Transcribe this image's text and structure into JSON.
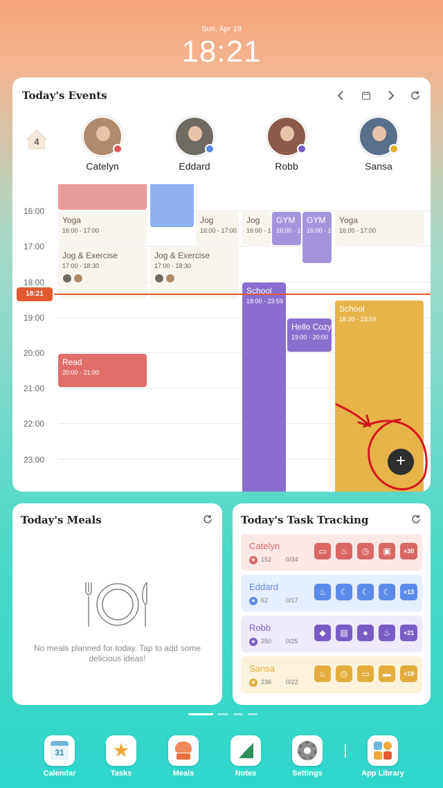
{
  "lockscreen": {
    "date": "Sun, Apr 19",
    "time": "18:21"
  },
  "events_card": {
    "title": "Today's Events",
    "household_count": "4",
    "people": [
      {
        "name": "Catelyn",
        "color": "#e05a55"
      },
      {
        "name": "Eddard",
        "color": "#5b8ae8"
      },
      {
        "name": "Robb",
        "color": "#7a5cc6"
      },
      {
        "name": "Sansa",
        "color": "#e6ae30"
      }
    ],
    "hours": [
      "16:00",
      "17:00",
      "18:00",
      "19:00",
      "20:00",
      "21:00",
      "22:00",
      "23:00"
    ],
    "now_label": "18:21",
    "events": {
      "catelyn_yoga": {
        "title": "Yoga",
        "time": "16:00 - 17:00"
      },
      "catelyn_jog": {
        "title": "Jog & Exercise",
        "time": "17:00 - 18:30"
      },
      "catelyn_read": {
        "title": "Read",
        "time": "20:00 - 21:00"
      },
      "eddard_jog": {
        "title": "Jog",
        "time": "16:00 - 17:00"
      },
      "eddard_jog_ex": {
        "title": "Jog & Exercise",
        "time": "17:00 - 18:30"
      },
      "robb_jog": {
        "title": "Jog",
        "time": "16:00 - 1"
      },
      "robb_gym1": {
        "title": "GYM",
        "time": "16:00 - 1"
      },
      "robb_gym2": {
        "title": "GYM",
        "time": "16:00 - 1"
      },
      "robb_school": {
        "title": "School",
        "time": "18:00 - 23:59"
      },
      "robb_hello": {
        "title": "Hello Cozy",
        "time": "19:00 - 20:00"
      },
      "sansa_yoga": {
        "title": "Yoga",
        "time": "16:00 - 17:00"
      },
      "sansa_school": {
        "title": "School",
        "time": "18:30 - 23:59"
      }
    },
    "add_button": "+"
  },
  "meals_card": {
    "title": "Today's Meals",
    "empty_text": "No meals planned for today. Tap to add some delicious ideas!"
  },
  "tasks_card": {
    "title": "Today's Task Tracking",
    "rows": [
      {
        "name": "Catelyn",
        "points": "152",
        "progress": "0/34",
        "more": "+30",
        "bg": "#fce8e6",
        "fg": "#d96863",
        "icons": [
          "cup-icon",
          "bath-icon",
          "clock-icon",
          "photo-icon"
        ]
      },
      {
        "name": "Eddard",
        "points": "62",
        "progress": "0/17",
        "more": "+13",
        "bg": "#e6efff",
        "fg": "#5b8ae8",
        "icons": [
          "bath-icon",
          "moon-icon",
          "moon-icon",
          "moon-icon"
        ]
      },
      {
        "name": "Robb",
        "points": "250",
        "progress": "0/25",
        "more": "+21",
        "bg": "#efeafb",
        "fg": "#7a5cc6",
        "icons": [
          "shirt-icon",
          "backpack-icon",
          "apple-icon",
          "bath-icon"
        ]
      },
      {
        "name": "Sansa",
        "points": "236",
        "progress": "0/22",
        "more": "+18",
        "bg": "#fdf3dc",
        "fg": "#e2ad3d",
        "icons": [
          "bath-icon",
          "clock-icon",
          "cup-icon",
          "bed-icon"
        ]
      }
    ]
  },
  "dock": [
    {
      "label": "Calendar",
      "icon": "calendar-icon"
    },
    {
      "label": "Tasks",
      "icon": "tasks-star-icon"
    },
    {
      "label": "Meals",
      "icon": "chef-hat-icon"
    },
    {
      "label": "Notes",
      "icon": "notes-icon"
    },
    {
      "label": "Settings",
      "icon": "settings-gear-icon"
    },
    {
      "label": "App Library",
      "icon": "app-library-icon"
    }
  ],
  "calendar_icon_day": "31"
}
